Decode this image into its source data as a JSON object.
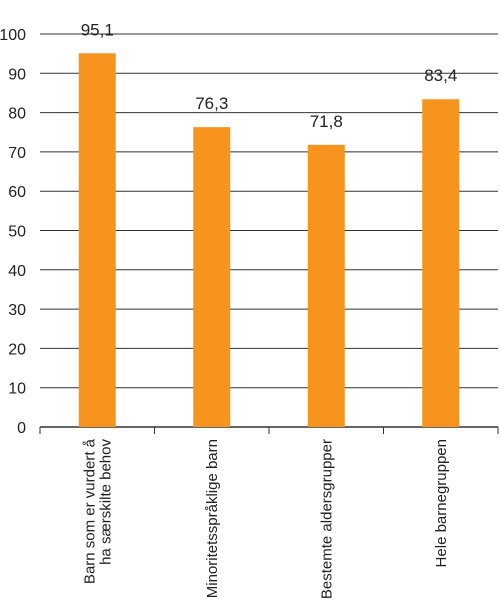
{
  "chart_data": {
    "type": "bar",
    "categories": [
      [
        "Barn som er vurdert å",
        "ha særskilte behov"
      ],
      [
        "Minoritetsspråklige barn"
      ],
      [
        "Bestemte aldersgrupper"
      ],
      [
        "Hele barnegruppen"
      ]
    ],
    "values": [
      95.1,
      76.3,
      71.8,
      83.4
    ],
    "value_labels": [
      "95,1",
      "76,3",
      "71,8",
      "83,4"
    ],
    "ylim": [
      0,
      100
    ],
    "yticks": [
      0,
      10,
      20,
      30,
      40,
      50,
      60,
      70,
      80,
      90,
      100
    ],
    "grid": true,
    "legend": false,
    "colors": {
      "bar": "#F7941D",
      "grid": "#333333",
      "text": "#222222"
    }
  }
}
